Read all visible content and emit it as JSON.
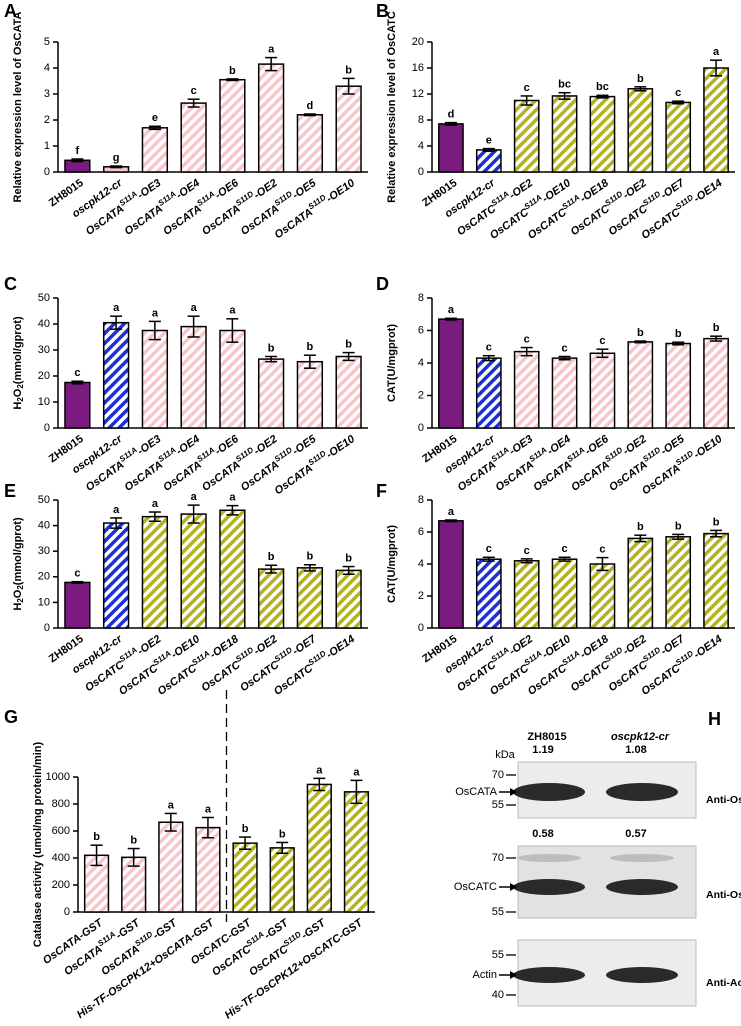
{
  "chart_data": [
    {
      "type": "bar",
      "label": "A",
      "ylabel": "Relative expression level of OsCATA",
      "categories": [
        "ZH8015",
        "oscpk12-cr",
        "OsCATAS11A-OE3",
        "OsCATAS11A-OE4",
        "OsCATAS11A-OE6",
        "OsCATAS11D-OE2",
        "OsCATAS11D-OE5",
        "OsCATAS11D-OE10"
      ],
      "values": [
        0.45,
        0.2,
        1.7,
        2.65,
        3.55,
        4.15,
        2.2,
        3.3
      ],
      "errors": [
        0.05,
        0.03,
        0.06,
        0.15,
        0.03,
        0.25,
        0.03,
        0.3
      ],
      "letters": [
        "f",
        "g",
        "e",
        "c",
        "b",
        "a",
        "d",
        "b"
      ],
      "colors": [
        "#7b1b80",
        "#f7c6ca",
        "#f7c6ca",
        "#f7c6ca",
        "#f7c6ca",
        "#f7c6ca",
        "#f7c6ca",
        "#f7c6ca"
      ],
      "hatched": [
        false,
        false,
        true,
        true,
        true,
        true,
        true,
        true
      ],
      "ylim": [
        0,
        5
      ],
      "yticks": [
        0,
        1,
        2,
        3,
        4,
        5
      ]
    },
    {
      "type": "bar",
      "label": "B",
      "ylabel": "Relative expression level of OsCATC",
      "categories": [
        "ZH8015",
        "oscpk12-cr",
        "OsCATCS11A-OE2",
        "OsCATCS11A-OE10",
        "OsCATCS11A-OE18",
        "OsCATCS11D-OE2",
        "OsCATCS11D-OE7",
        "OsCATCS11D-OE14"
      ],
      "values": [
        7.4,
        3.4,
        11.0,
        11.7,
        11.6,
        12.8,
        10.7,
        16.0
      ],
      "errors": [
        0.2,
        0.2,
        0.7,
        0.5,
        0.2,
        0.3,
        0.2,
        1.2
      ],
      "letters": [
        "d",
        "e",
        "c",
        "bc",
        "bc",
        "b",
        "c",
        "a"
      ],
      "colors": [
        "#7b1b80",
        "#1f2fd6",
        "#b3b224",
        "#b3b224",
        "#b3b224",
        "#b3b224",
        "#b3b224",
        "#b3b224"
      ],
      "hatched": [
        false,
        true,
        true,
        true,
        true,
        true,
        true,
        true
      ],
      "ylim": [
        0,
        20
      ],
      "yticks": [
        0,
        4,
        8,
        12,
        16,
        20
      ]
    },
    {
      "type": "bar",
      "label": "C",
      "ylabel": "H2O2(mmol/gprot)",
      "categories": [
        "ZH8015",
        "oscpk12-cr",
        "OsCATAS11A-OE3",
        "OsCATAS11A-OE4",
        "OsCATAS11A-OE6",
        "OsCATAS11D-OE2",
        "OsCATAS11D-OE5",
        "OsCATAS11D-OE10"
      ],
      "values": [
        17.5,
        40.5,
        37.5,
        39,
        37.5,
        26.5,
        25.5,
        27.5
      ],
      "errors": [
        0.5,
        2.5,
        3.5,
        4,
        4.5,
        1,
        2.5,
        1.5
      ],
      "letters": [
        "c",
        "a",
        "a",
        "a",
        "a",
        "b",
        "b",
        "b"
      ],
      "colors": [
        "#7b1b80",
        "#1f2fd6",
        "#f7c6ca",
        "#f7c6ca",
        "#f7c6ca",
        "#f7c6ca",
        "#f7c6ca",
        "#f7c6ca"
      ],
      "hatched": [
        false,
        true,
        true,
        true,
        true,
        true,
        true,
        true
      ],
      "ylim": [
        0,
        50
      ],
      "yticks": [
        0,
        10,
        20,
        30,
        40,
        50
      ]
    },
    {
      "type": "bar",
      "label": "D",
      "ylabel": "CAT(U/mgprot)",
      "categories": [
        "ZH8015",
        "oscpk12-cr",
        "OsCATAS11A-OE3",
        "OsCATAS11A-OE4",
        "OsCATAS11A-OE6",
        "OsCATAS11D-OE2",
        "OsCATAS11D-OE5",
        "OsCATAS11D-OE10"
      ],
      "values": [
        6.7,
        4.3,
        4.7,
        4.3,
        4.6,
        5.3,
        5.2,
        5.5
      ],
      "errors": [
        0.05,
        0.15,
        0.25,
        0.1,
        0.25,
        0.05,
        0.08,
        0.15
      ],
      "letters": [
        "a",
        "c",
        "c",
        "c",
        "c",
        "b",
        "b",
        "b"
      ],
      "colors": [
        "#7b1b80",
        "#1f2fd6",
        "#f7c6ca",
        "#f7c6ca",
        "#f7c6ca",
        "#f7c6ca",
        "#f7c6ca",
        "#f7c6ca"
      ],
      "hatched": [
        false,
        true,
        true,
        true,
        true,
        true,
        true,
        true
      ],
      "ylim": [
        0,
        8
      ],
      "yticks": [
        0,
        2,
        4,
        6,
        8
      ]
    },
    {
      "type": "bar",
      "label": "E",
      "ylabel": "H2O2(mmol/gprot)",
      "categories": [
        "ZH8015",
        "oscpk12-cr",
        "OsCATCS11A-OE2",
        "OsCATCS11A-OE10",
        "OsCATCS11A-OE18",
        "OsCATCS11D-OE2",
        "OsCATCS11D-OE7",
        "OsCATCS11D-OE14"
      ],
      "values": [
        17.8,
        41,
        43.5,
        44.5,
        46,
        23,
        23.5,
        22.5
      ],
      "errors": [
        0.3,
        2,
        1.8,
        3.5,
        1.8,
        1.5,
        1.2,
        1.5
      ],
      "letters": [
        "c",
        "a",
        "a",
        "a",
        "a",
        "b",
        "b",
        "b"
      ],
      "colors": [
        "#7b1b80",
        "#1f2fd6",
        "#b3b224",
        "#b3b224",
        "#b3b224",
        "#b3b224",
        "#b3b224",
        "#b3b224"
      ],
      "hatched": [
        false,
        true,
        true,
        true,
        true,
        true,
        true,
        true
      ],
      "ylim": [
        0,
        50
      ],
      "yticks": [
        0,
        10,
        20,
        30,
        40,
        50
      ]
    },
    {
      "type": "bar",
      "label": "F",
      "ylabel": "CAT(U/mgprot)",
      "categories": [
        "ZH8015",
        "oscpk12-cr",
        "OsCATCS11A-OE2",
        "OsCATCS11A-OE10",
        "OsCATCS11A-OE18",
        "OsCATCS11D-OE2",
        "OsCATCS11D-OE7",
        "OsCATCS11D-OE14"
      ],
      "values": [
        6.7,
        4.3,
        4.2,
        4.3,
        4.0,
        5.6,
        5.7,
        5.9
      ],
      "errors": [
        0.05,
        0.12,
        0.12,
        0.12,
        0.4,
        0.2,
        0.15,
        0.2
      ],
      "letters": [
        "a",
        "c",
        "c",
        "c",
        "c",
        "b",
        "b",
        "b"
      ],
      "colors": [
        "#7b1b80",
        "#1f2fd6",
        "#b3b224",
        "#b3b224",
        "#b3b224",
        "#b3b224",
        "#b3b224",
        "#b3b224"
      ],
      "hatched": [
        false,
        true,
        true,
        true,
        true,
        true,
        true,
        true
      ],
      "ylim": [
        0,
        8
      ],
      "yticks": [
        0,
        2,
        4,
        6,
        8
      ]
    },
    {
      "type": "bar",
      "label": "G",
      "ylabel": "Catalase activity (umol/mg protein/min)",
      "categories": [
        "OsCATA-GST",
        "OsCATAS11A-GST",
        "OsCATAS11D-GST",
        "His-TF-OsCPK12+OsCATA-GST",
        "OsCATC-GST",
        "OsCATCS11A-GST",
        "OsCATCS11D-GST",
        "His-TF-OsCPK12+OsCATC-GST"
      ],
      "values": [
        420,
        405,
        665,
        625,
        510,
        475,
        945,
        890
      ],
      "errors": [
        75,
        65,
        65,
        75,
        45,
        40,
        45,
        85
      ],
      "letters": [
        "b",
        "b",
        "a",
        "a",
        "b",
        "b",
        "a",
        "a"
      ],
      "colors": [
        "#f7c6ca",
        "#f7c6ca",
        "#f7c6ca",
        "#f7c6ca",
        "#b3b224",
        "#b3b224",
        "#b3b224",
        "#b3b224"
      ],
      "hatched": [
        true,
        true,
        true,
        true,
        true,
        true,
        true,
        true
      ],
      "ylim": [
        0,
        1000
      ],
      "yticks": [
        0,
        200,
        400,
        600,
        800,
        1000
      ]
    }
  ],
  "blot": {
    "label": "H",
    "lanes": [
      "ZH8015",
      "oscpk12-cr"
    ],
    "unit": "kDa",
    "panels": [
      {
        "values": [
          1.19,
          1.08
        ],
        "markers": [
          70,
          55
        ],
        "protein": "OsCATA",
        "antibody": "Anti-OsCATA"
      },
      {
        "values": [
          0.58,
          0.57
        ],
        "markers": [
          70,
          55
        ],
        "protein": "OsCATC",
        "antibody": "Anti-OsCATC"
      },
      {
        "markers": [
          55,
          40
        ],
        "protein": "Actin",
        "antibody": "Anti-Actin"
      }
    ]
  }
}
